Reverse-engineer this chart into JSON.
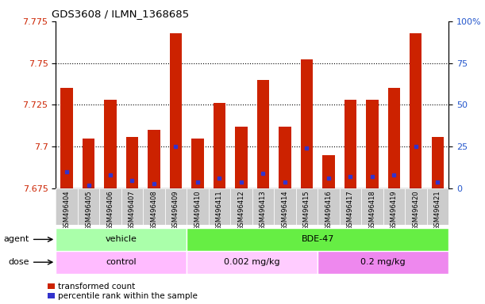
{
  "title": "GDS3608 / ILMN_1368685",
  "samples": [
    "GSM496404",
    "GSM496405",
    "GSM496406",
    "GSM496407",
    "GSM496408",
    "GSM496409",
    "GSM496410",
    "GSM496411",
    "GSM496412",
    "GSM496413",
    "GSM496414",
    "GSM496415",
    "GSM496416",
    "GSM496417",
    "GSM496418",
    "GSM496419",
    "GSM496420",
    "GSM496421"
  ],
  "bar_tops": [
    7.735,
    7.705,
    7.728,
    7.706,
    7.71,
    7.768,
    7.705,
    7.726,
    7.712,
    7.74,
    7.712,
    7.752,
    7.695,
    7.728,
    7.728,
    7.735,
    7.768,
    7.706
  ],
  "blue_vals": [
    7.685,
    7.677,
    7.683,
    7.68,
    7.678,
    7.7,
    7.679,
    7.681,
    7.679,
    7.684,
    7.679,
    7.699,
    7.681,
    7.682,
    7.682,
    7.683,
    7.7,
    7.679
  ],
  "bar_bottom": 7.675,
  "ylim_left": [
    7.675,
    7.775
  ],
  "ylim_right": [
    0,
    100
  ],
  "yticks_left": [
    7.675,
    7.7,
    7.725,
    7.75,
    7.775
  ],
  "ytick_labels_left": [
    "7.675",
    "7.7",
    "7.725",
    "7.75",
    "7.775"
  ],
  "grid_yticks": [
    7.7,
    7.725,
    7.75
  ],
  "yticks_right": [
    0,
    25,
    50,
    75,
    100
  ],
  "ytick_labels_right": [
    "0",
    "25",
    "50",
    "75",
    "100%"
  ],
  "bar_color": "#cc2200",
  "blue_color": "#3333cc",
  "agent_groups": [
    {
      "label": "vehicle",
      "start": 0,
      "end": 6,
      "color": "#aaffaa"
    },
    {
      "label": "BDE-47",
      "start": 6,
      "end": 18,
      "color": "#66ee44"
    }
  ],
  "dose_groups": [
    {
      "label": "control",
      "start": 0,
      "end": 6,
      "color": "#ffbbff"
    },
    {
      "label": "0.002 mg/kg",
      "start": 6,
      "end": 12,
      "color": "#ffccff"
    },
    {
      "label": "0.2 mg/kg",
      "start": 12,
      "end": 18,
      "color": "#ee88ee"
    }
  ],
  "legend_items": [
    {
      "label": "transformed count",
      "color": "#cc2200"
    },
    {
      "label": "percentile rank within the sample",
      "color": "#3333cc"
    }
  ],
  "left_tick_color": "#cc2200",
  "right_tick_color": "#2255cc",
  "plot_bg_color": "#ffffff",
  "xtick_bg_color": "#cccccc",
  "bar_width": 0.55
}
